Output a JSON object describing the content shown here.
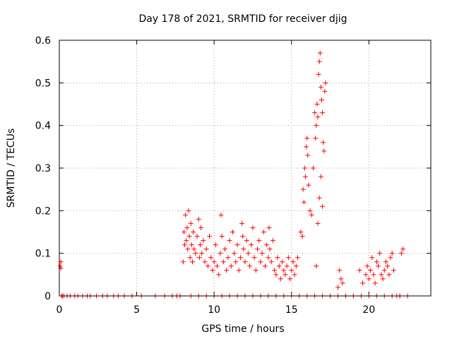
{
  "chart_data": {
    "type": "scatter",
    "title": "Day 178 of 2021, SRMTID for receiver djig",
    "xlabel": "GPS time / hours",
    "ylabel": "SRMTID / TECUs",
    "xlim": [
      0,
      24
    ],
    "ylim": [
      0,
      0.6
    ],
    "xticks": [
      0,
      5,
      10,
      15,
      20
    ],
    "xtick_labels": [
      "0",
      "5",
      "10",
      "15",
      "20"
    ],
    "yticks": [
      0,
      0.1,
      0.2,
      0.3,
      0.4,
      0.5,
      0.6
    ],
    "ytick_labels": [
      "0",
      "0.1",
      "0.2",
      "0.3",
      "0.4",
      "0.5",
      "0.6"
    ],
    "grid": true,
    "marker": "+",
    "color": "#ff0000",
    "series": [
      {
        "name": "SRMTID",
        "x": [
          0.05,
          0.1,
          0.1,
          0.15,
          0.2,
          0.3,
          0.5,
          0.7,
          1.0,
          1.2,
          1.5,
          1.8,
          2.0,
          2.4,
          2.8,
          3.1,
          3.5,
          3.8,
          4.2,
          4.7,
          5.3,
          6.2,
          6.8,
          7.3,
          7.6,
          7.8,
          8.0,
          8.05,
          8.1,
          8.15,
          8.2,
          8.25,
          8.3,
          8.35,
          8.4,
          8.45,
          8.5,
          8.55,
          8.6,
          8.65,
          8.7,
          8.8,
          8.9,
          9.0,
          9.05,
          9.1,
          9.15,
          9.2,
          9.3,
          9.4,
          9.5,
          9.6,
          9.7,
          9.8,
          9.9,
          10.0,
          10.1,
          10.2,
          10.3,
          10.4,
          10.45,
          10.5,
          10.6,
          10.7,
          10.8,
          10.9,
          11.0,
          11.1,
          11.2,
          11.3,
          11.4,
          11.5,
          11.6,
          11.7,
          11.8,
          11.85,
          11.9,
          12.0,
          12.1,
          12.2,
          12.3,
          12.4,
          12.5,
          12.6,
          12.7,
          12.8,
          12.9,
          13.0,
          13.1,
          13.2,
          13.3,
          13.4,
          13.5,
          13.55,
          13.6,
          13.7,
          13.8,
          13.9,
          14.0,
          14.1,
          14.2,
          14.3,
          14.4,
          14.5,
          14.6,
          14.7,
          14.8,
          14.9,
          15.0,
          15.1,
          15.2,
          15.3,
          15.4,
          15.6,
          15.7,
          15.75,
          15.8,
          15.85,
          15.9,
          15.95,
          16.0,
          16.05,
          16.1,
          16.2,
          16.3,
          16.4,
          16.5,
          16.55,
          16.6,
          16.65,
          16.7,
          16.75,
          16.8,
          16.85,
          16.9,
          16.95,
          17.0,
          17.05,
          17.1,
          17.15,
          17.2,
          16.6,
          16.7,
          16.8,
          16.9,
          17.0,
          18.1,
          18.2,
          18.3,
          18.0,
          18.5,
          19.0,
          19.4,
          19.6,
          19.8,
          19.9,
          20.0,
          20.1,
          20.2,
          20.3,
          20.4,
          20.5,
          20.6,
          20.7,
          20.8,
          20.9,
          21.0,
          21.1,
          21.2,
          21.3,
          21.4,
          21.5,
          21.6,
          21.8,
          22.0,
          22.1,
          22.2,
          8.5,
          9.0,
          9.5,
          10.0,
          10.5,
          11.0,
          11.5,
          12.0,
          12.5,
          13.0,
          13.5,
          14.0,
          14.5,
          15.0,
          15.5,
          16.0,
          16.5,
          17.0,
          17.5,
          18.0,
          18.5,
          19.0,
          19.5,
          20.0,
          20.5,
          21.0,
          21.5,
          22.0,
          22.5
        ],
        "y": [
          0.07,
          0.08,
          0.065,
          0.0,
          0.0,
          0.0,
          0.0,
          0.0,
          0.0,
          0.0,
          0.0,
          0.0,
          0.0,
          0.0,
          0.0,
          0.0,
          0.0,
          0.0,
          0.0,
          0.0,
          0.0,
          0.0,
          0.0,
          0.0,
          0.0,
          0.0,
          0.08,
          0.15,
          0.12,
          0.19,
          0.13,
          0.16,
          0.11,
          0.2,
          0.14,
          0.09,
          0.17,
          0.12,
          0.08,
          0.15,
          0.11,
          0.1,
          0.14,
          0.18,
          0.09,
          0.12,
          0.16,
          0.1,
          0.13,
          0.08,
          0.11,
          0.07,
          0.14,
          0.09,
          0.06,
          0.08,
          0.12,
          0.07,
          0.05,
          0.1,
          0.19,
          0.14,
          0.08,
          0.11,
          0.06,
          0.09,
          0.13,
          0.07,
          0.15,
          0.1,
          0.08,
          0.12,
          0.06,
          0.09,
          0.17,
          0.14,
          0.11,
          0.08,
          0.13,
          0.1,
          0.07,
          0.12,
          0.16,
          0.09,
          0.06,
          0.11,
          0.13,
          0.08,
          0.1,
          0.15,
          0.07,
          0.12,
          0.09,
          0.16,
          0.11,
          0.08,
          0.13,
          0.06,
          0.05,
          0.09,
          0.07,
          0.04,
          0.08,
          0.06,
          0.05,
          0.07,
          0.09,
          0.04,
          0.06,
          0.08,
          0.05,
          0.07,
          0.09,
          0.15,
          0.14,
          0.25,
          0.22,
          0.3,
          0.28,
          0.35,
          0.37,
          0.33,
          0.26,
          0.2,
          0.19,
          0.3,
          0.43,
          0.37,
          0.4,
          0.45,
          0.42,
          0.52,
          0.55,
          0.57,
          0.49,
          0.46,
          0.43,
          0.36,
          0.34,
          0.48,
          0.5,
          0.07,
          0.17,
          0.23,
          0.28,
          0.21,
          0.06,
          0.04,
          0.03,
          0.02,
          0.0,
          0.0,
          0.06,
          0.03,
          0.05,
          0.07,
          0.04,
          0.06,
          0.09,
          0.05,
          0.03,
          0.08,
          0.07,
          0.1,
          0.05,
          0.04,
          0.06,
          0.08,
          0.07,
          0.05,
          0.09,
          0.1,
          0.06,
          0.0,
          0.0,
          0.1,
          0.11,
          0.0,
          0.0,
          0.0,
          0.0,
          0.0,
          0.0,
          0.0,
          0.0,
          0.0,
          0.0,
          0.0,
          0.0,
          0.0,
          0.0,
          0.0,
          0.0,
          0.0,
          0.0,
          0.0,
          0.0,
          0.0,
          0.0,
          0.0,
          0.0,
          0.0,
          0.0,
          0.0,
          0.0,
          0.0
        ]
      }
    ]
  }
}
